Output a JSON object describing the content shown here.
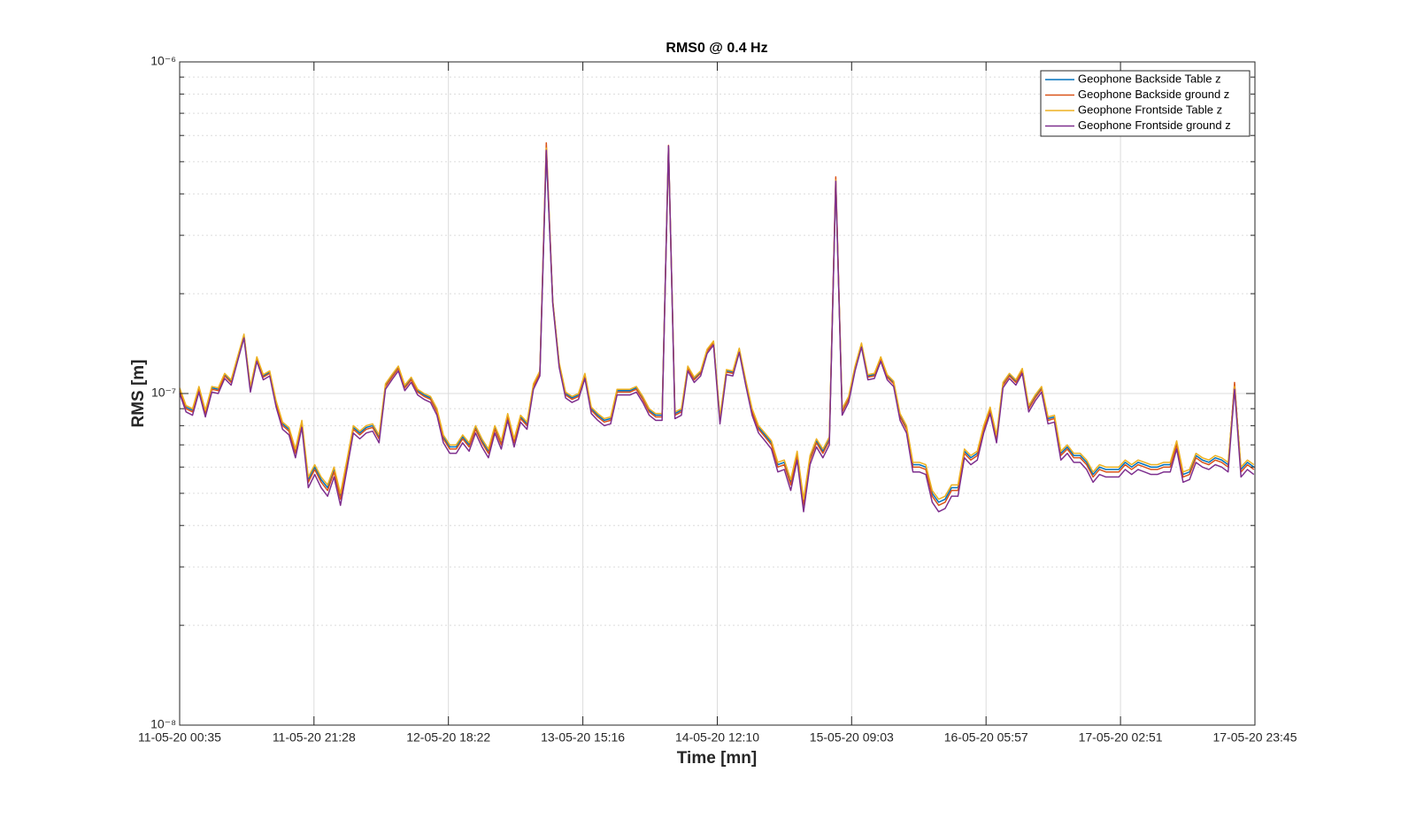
{
  "chart_data": {
    "type": "line",
    "title": "RMS0 @ 0.4 Hz",
    "xlabel": "Time [mn]",
    "ylabel": "RMS [m]",
    "yscale": "log",
    "grid": true,
    "legend": "upper right",
    "xlim": [
      "11-05-20 00:35",
      "17-05-20 23:45"
    ],
    "xticks": [
      "11-05-20 00:35",
      "11-05-20 21:28",
      "12-05-20 18:22",
      "13-05-20 15:16",
      "14-05-20 12:10",
      "15-05-20 09:03",
      "16-05-20 05:57",
      "17-05-20 02:51",
      "17-05-20 23:45"
    ],
    "ylim": [
      1e-08,
      1e-06
    ],
    "yticks": [
      {
        "value": 1e-08,
        "label": "10⁻⁸"
      },
      {
        "value": 1e-07,
        "label": "10⁻⁷"
      },
      {
        "value": 1e-06,
        "label": "10⁻⁶"
      }
    ],
    "yminorticks": [
      2e-08,
      3e-08,
      4e-08,
      5e-08,
      6e-08,
      7e-08,
      8e-08,
      9e-08,
      2e-07,
      3e-07,
      4e-07,
      5e-07,
      6e-07,
      7e-07,
      8e-07,
      9e-07
    ],
    "x": [
      "11-05-20 00:35",
      "11-05-20 01:35",
      "11-05-20 02:35",
      "11-05-20 03:35",
      "11-05-20 04:35",
      "11-05-20 05:35",
      "11-05-20 06:35",
      "11-05-20 07:35",
      "11-05-20 08:35",
      "11-05-20 09:35",
      "11-05-20 10:35",
      "11-05-20 11:35",
      "11-05-20 12:35",
      "11-05-20 13:35",
      "11-05-20 14:35",
      "11-05-20 15:35",
      "11-05-20 16:35",
      "11-05-20 17:35",
      "11-05-20 18:35",
      "11-05-20 19:35",
      "11-05-20 20:35",
      "11-05-20 21:35",
      "11-05-20 22:35",
      "11-05-20 23:35",
      "12-05-20 00:35",
      "12-05-20 01:35",
      "12-05-20 02:35",
      "12-05-20 03:35",
      "12-05-20 04:35",
      "12-05-20 05:35",
      "12-05-20 06:35",
      "12-05-20 07:35",
      "12-05-20 08:35",
      "12-05-20 09:35",
      "12-05-20 10:35",
      "12-05-20 11:35",
      "12-05-20 12:35",
      "12-05-20 13:35",
      "12-05-20 14:35",
      "12-05-20 15:35",
      "12-05-20 16:35",
      "12-05-20 17:35",
      "12-05-20 18:35",
      "12-05-20 19:35",
      "12-05-20 20:35",
      "12-05-20 21:35",
      "12-05-20 22:35",
      "12-05-20 23:35",
      "13-05-20 00:35",
      "13-05-20 01:35",
      "13-05-20 02:35",
      "13-05-20 03:35",
      "13-05-20 04:35",
      "13-05-20 05:35",
      "13-05-20 06:35",
      "13-05-20 07:35",
      "13-05-20 08:35",
      "13-05-20 09:35",
      "13-05-20 10:35",
      "13-05-20 11:35",
      "13-05-20 12:35",
      "13-05-20 13:35",
      "13-05-20 14:35",
      "13-05-20 15:35",
      "13-05-20 16:35",
      "13-05-20 17:35",
      "13-05-20 18:35",
      "13-05-20 19:35",
      "13-05-20 20:35",
      "13-05-20 21:35",
      "13-05-20 22:35",
      "13-05-20 23:35",
      "14-05-20 00:35",
      "14-05-20 01:35",
      "14-05-20 02:35",
      "14-05-20 03:35",
      "14-05-20 04:35",
      "14-05-20 05:35",
      "14-05-20 06:35",
      "14-05-20 07:35",
      "14-05-20 08:35",
      "14-05-20 09:35",
      "14-05-20 10:35",
      "14-05-20 11:35",
      "14-05-20 12:35",
      "14-05-20 13:35",
      "14-05-20 14:35",
      "14-05-20 15:35",
      "14-05-20 16:35",
      "14-05-20 17:35",
      "14-05-20 18:35",
      "14-05-20 19:35",
      "14-05-20 20:35",
      "14-05-20 21:35",
      "14-05-20 22:35",
      "14-05-20 23:35",
      "15-05-20 00:35",
      "15-05-20 01:35",
      "15-05-20 02:35",
      "15-05-20 03:35",
      "15-05-20 04:35",
      "15-05-20 05:35",
      "15-05-20 06:35",
      "15-05-20 07:35",
      "15-05-20 08:35",
      "15-05-20 09:35",
      "15-05-20 10:35",
      "15-05-20 11:35",
      "15-05-20 12:35",
      "15-05-20 13:35",
      "15-05-20 14:35",
      "15-05-20 15:35",
      "15-05-20 16:35",
      "15-05-20 17:35",
      "15-05-20 18:35",
      "15-05-20 19:35",
      "15-05-20 20:35",
      "15-05-20 21:35",
      "15-05-20 22:35",
      "15-05-20 23:35",
      "16-05-20 00:35",
      "16-05-20 01:35",
      "16-05-20 02:35",
      "16-05-20 03:35",
      "16-05-20 04:35",
      "16-05-20 05:35",
      "16-05-20 06:35",
      "16-05-20 07:35",
      "16-05-20 08:35",
      "16-05-20 09:35",
      "16-05-20 10:35",
      "16-05-20 11:35",
      "16-05-20 12:35",
      "16-05-20 13:35",
      "16-05-20 14:35",
      "16-05-20 15:35",
      "16-05-20 16:35",
      "16-05-20 17:35",
      "16-05-20 18:35",
      "16-05-20 19:35",
      "16-05-20 20:35",
      "16-05-20 21:35",
      "16-05-20 22:35",
      "16-05-20 23:35",
      "17-05-20 00:35",
      "17-05-20 01:35",
      "17-05-20 02:35",
      "17-05-20 03:35",
      "17-05-20 04:35",
      "17-05-20 05:35",
      "17-05-20 06:35",
      "17-05-20 07:35",
      "17-05-20 08:35",
      "17-05-20 09:35",
      "17-05-20 10:35",
      "17-05-20 11:35",
      "17-05-20 12:35",
      "17-05-20 13:35",
      "17-05-20 14:35",
      "17-05-20 15:35",
      "17-05-20 16:35",
      "17-05-20 17:35",
      "17-05-20 18:35",
      "17-05-20 19:35",
      "17-05-20 20:35",
      "17-05-20 21:35",
      "17-05-20 22:35",
      "17-05-20 23:35"
    ],
    "series": [
      {
        "name": "Geophone Backside Table z",
        "color": "#0072bd",
        "values": [
          1.03e-07,
          9.1e-08,
          8.9e-08,
          1.04e-07,
          8.8e-08,
          1.04e-07,
          1.03e-07,
          1.14e-07,
          1.09e-07,
          1.28e-07,
          1.5e-07,
          1.04e-07,
          1.28e-07,
          1.13e-07,
          1.16e-07,
          9.4e-08,
          8.1e-08,
          7.8e-08,
          6.7e-08,
          8.2e-08,
          5.5e-08,
          6e-08,
          5.5e-08,
          5.2e-08,
          5.9e-08,
          4.9e-08,
          6.2e-08,
          7.9e-08,
          7.6e-08,
          7.9e-08,
          8e-08,
          7.4e-08,
          1.06e-07,
          1.13e-07,
          1.2e-07,
          1.05e-07,
          1.11e-07,
          1.02e-07,
          9.9e-08,
          9.7e-08,
          8.9e-08,
          7.4e-08,
          6.9e-08,
          6.9e-08,
          7.4e-08,
          7e-08,
          7.9e-08,
          7.2e-08,
          6.7e-08,
          7.9e-08,
          7.1e-08,
          8.6e-08,
          7.2e-08,
          8.5e-08,
          8.1e-08,
          1.06e-07,
          1.16e-07,
          5.3e-07,
          1.9e-07,
          1.23e-07,
          1e-07,
          9.7e-08,
          9.9e-08,
          1.14e-07,
          9e-08,
          8.6e-08,
          8.3e-08,
          8.4e-08,
          1.02e-07,
          1.02e-07,
          1.02e-07,
          1.04e-07,
          9.7e-08,
          8.9e-08,
          8.6e-08,
          8.6e-08,
          5.5e-07,
          8.7e-08,
          8.9e-08,
          1.2e-07,
          1.11e-07,
          1.16e-07,
          1.35e-07,
          1.43e-07,
          8.4e-08,
          1.17e-07,
          1.16e-07,
          1.36e-07,
          1.09e-07,
          8.9e-08,
          7.9e-08,
          7.5e-08,
          7.1e-08,
          6.1e-08,
          6.2e-08,
          5.4e-08,
          6.6e-08,
          4.7e-08,
          6.4e-08,
          7.2e-08,
          6.7e-08,
          7.3e-08,
          4.3e-07,
          8.9e-08,
          9.7e-08,
          1.2e-07,
          1.41e-07,
          1.13e-07,
          1.14e-07,
          1.28e-07,
          1.13e-07,
          1.08e-07,
          8.6e-08,
          7.9e-08,
          6.1e-08,
          6.1e-08,
          6e-08,
          5e-08,
          4.7e-08,
          4.8e-08,
          5.2e-08,
          5.2e-08,
          6.7e-08,
          6.4e-08,
          6.6e-08,
          7.9e-08,
          9e-08,
          7.4e-08,
          1.07e-07,
          1.14e-07,
          1.09e-07,
          1.18e-07,
          9.1e-08,
          9.8e-08,
          1.04e-07,
          8.4e-08,
          8.5e-08,
          6.6e-08,
          6.9e-08,
          6.5e-08,
          6.5e-08,
          6.2e-08,
          5.7e-08,
          6e-08,
          5.9e-08,
          5.9e-08,
          5.9e-08,
          6.2e-08,
          6e-08,
          6.2e-08,
          6.1e-08,
          6e-08,
          6e-08,
          6.1e-08,
          6.1e-08,
          7.1e-08,
          5.7e-08,
          5.8e-08,
          6.5e-08,
          6.3e-08,
          6.2e-08,
          6.4e-08,
          6.3e-08,
          6.1e-08,
          1.06e-07,
          5.9e-08,
          6.2e-08,
          6e-08
        ]
      },
      {
        "name": "Geophone Backside ground z",
        "color": "#d95319",
        "values": [
          1.02e-07,
          9e-08,
          8.8e-08,
          1.03e-07,
          8.7e-08,
          1.03e-07,
          1.02e-07,
          1.13e-07,
          1.08e-07,
          1.27e-07,
          1.49e-07,
          1.03e-07,
          1.27e-07,
          1.12e-07,
          1.15e-07,
          9.3e-08,
          8e-08,
          7.7e-08,
          6.6e-08,
          8.1e-08,
          5.4e-08,
          5.9e-08,
          5.4e-08,
          5.1e-08,
          5.8e-08,
          4.8e-08,
          6.1e-08,
          7.8e-08,
          7.5e-08,
          7.8e-08,
          7.9e-08,
          7.3e-08,
          1.05e-07,
          1.12e-07,
          1.19e-07,
          1.04e-07,
          1.1e-07,
          1.01e-07,
          9.8e-08,
          9.6e-08,
          8.8e-08,
          7.3e-08,
          6.8e-08,
          6.8e-08,
          7.3e-08,
          6.9e-08,
          7.8e-08,
          7.1e-08,
          6.6e-08,
          7.8e-08,
          7e-08,
          8.5e-08,
          7.1e-08,
          8.4e-08,
          8e-08,
          1.05e-07,
          1.15e-07,
          5.7e-07,
          1.89e-07,
          1.22e-07,
          9.9e-08,
          9.6e-08,
          9.8e-08,
          1.13e-07,
          8.9e-08,
          8.5e-08,
          8.2e-08,
          8.3e-08,
          1.01e-07,
          1.01e-07,
          1.01e-07,
          1.03e-07,
          9.6e-08,
          8.8e-08,
          8.5e-08,
          8.5e-08,
          5.6e-07,
          8.6e-08,
          8.8e-08,
          1.19e-07,
          1.1e-07,
          1.15e-07,
          1.34e-07,
          1.42e-07,
          8.3e-08,
          1.16e-07,
          1.15e-07,
          1.35e-07,
          1.08e-07,
          8.8e-08,
          7.8e-08,
          7.4e-08,
          7e-08,
          6e-08,
          6.1e-08,
          5.3e-08,
          6.5e-08,
          4.6e-08,
          6.3e-08,
          7.1e-08,
          6.6e-08,
          7.2e-08,
          4.5e-07,
          8.8e-08,
          9.6e-08,
          1.19e-07,
          1.4e-07,
          1.12e-07,
          1.13e-07,
          1.27e-07,
          1.12e-07,
          1.07e-07,
          8.5e-08,
          7.8e-08,
          6e-08,
          6e-08,
          5.9e-08,
          4.9e-08,
          4.6e-08,
          4.7e-08,
          5.1e-08,
          5.1e-08,
          6.6e-08,
          6.3e-08,
          6.5e-08,
          7.8e-08,
          8.9e-08,
          7.3e-08,
          1.06e-07,
          1.13e-07,
          1.08e-07,
          1.17e-07,
          9e-08,
          9.7e-08,
          1.03e-07,
          8.3e-08,
          8.4e-08,
          6.5e-08,
          6.8e-08,
          6.4e-08,
          6.4e-08,
          6.1e-08,
          5.6e-08,
          5.9e-08,
          5.8e-08,
          5.8e-08,
          5.8e-08,
          6.1e-08,
          5.9e-08,
          6.1e-08,
          6e-08,
          5.9e-08,
          5.9e-08,
          6e-08,
          6e-08,
          7e-08,
          5.6e-08,
          5.7e-08,
          6.4e-08,
          6.2e-08,
          6.1e-08,
          6.3e-08,
          6.2e-08,
          6e-08,
          1.08e-07,
          5.8e-08,
          6.1e-08,
          5.9e-08
        ]
      },
      {
        "name": "Geophone Frontside Table z",
        "color": "#edb120",
        "values": [
          1.04e-07,
          9.2e-08,
          9e-08,
          1.05e-07,
          8.9e-08,
          1.05e-07,
          1.04e-07,
          1.15e-07,
          1.1e-07,
          1.29e-07,
          1.51e-07,
          1.05e-07,
          1.29e-07,
          1.14e-07,
          1.17e-07,
          9.5e-08,
          8.2e-08,
          7.9e-08,
          6.8e-08,
          8.3e-08,
          5.6e-08,
          6.1e-08,
          5.6e-08,
          5.3e-08,
          6e-08,
          5e-08,
          6.3e-08,
          8e-08,
          7.7e-08,
          8e-08,
          8.1e-08,
          7.5e-08,
          1.07e-07,
          1.14e-07,
          1.21e-07,
          1.06e-07,
          1.12e-07,
          1.03e-07,
          1e-07,
          9.8e-08,
          9e-08,
          7.5e-08,
          7e-08,
          7e-08,
          7.5e-08,
          7.1e-08,
          8e-08,
          7.3e-08,
          6.8e-08,
          8e-08,
          7.2e-08,
          8.7e-08,
          7.3e-08,
          8.6e-08,
          8.2e-08,
          1.07e-07,
          1.17e-07,
          5.5e-07,
          1.91e-07,
          1.24e-07,
          1.01e-07,
          9.8e-08,
          1e-07,
          1.15e-07,
          9.1e-08,
          8.7e-08,
          8.4e-08,
          8.5e-08,
          1.03e-07,
          1.03e-07,
          1.03e-07,
          1.05e-07,
          9.8e-08,
          9e-08,
          8.7e-08,
          8.7e-08,
          5.45e-07,
          8.8e-08,
          9e-08,
          1.21e-07,
          1.12e-07,
          1.17e-07,
          1.36e-07,
          1.44e-07,
          8.5e-08,
          1.18e-07,
          1.17e-07,
          1.37e-07,
          1.1e-07,
          9e-08,
          8e-08,
          7.6e-08,
          7.2e-08,
          6.2e-08,
          6.3e-08,
          5.5e-08,
          6.7e-08,
          4.8e-08,
          6.5e-08,
          7.3e-08,
          6.8e-08,
          7.4e-08,
          4.4e-07,
          9e-08,
          9.8e-08,
          1.21e-07,
          1.42e-07,
          1.14e-07,
          1.15e-07,
          1.29e-07,
          1.14e-07,
          1.09e-07,
          8.7e-08,
          8e-08,
          6.2e-08,
          6.2e-08,
          6.1e-08,
          5.1e-08,
          4.8e-08,
          4.9e-08,
          5.3e-08,
          5.3e-08,
          6.8e-08,
          6.5e-08,
          6.7e-08,
          8e-08,
          9.1e-08,
          7.5e-08,
          1.08e-07,
          1.15e-07,
          1.1e-07,
          1.19e-07,
          9.2e-08,
          9.9e-08,
          1.05e-07,
          8.5e-08,
          8.6e-08,
          6.7e-08,
          7e-08,
          6.6e-08,
          6.6e-08,
          6.3e-08,
          5.8e-08,
          6.1e-08,
          6e-08,
          6e-08,
          6e-08,
          6.3e-08,
          6.1e-08,
          6.3e-08,
          6.2e-08,
          6.1e-08,
          6.1e-08,
          6.2e-08,
          6.2e-08,
          7.2e-08,
          5.8e-08,
          5.9e-08,
          6.6e-08,
          6.4e-08,
          6.3e-08,
          6.5e-08,
          6.4e-08,
          6.2e-08,
          1.05e-07,
          6e-08,
          6.3e-08,
          6.1e-08
        ]
      },
      {
        "name": "Geophone Frontside ground z",
        "color": "#7e2f8e",
        "values": [
          1e-07,
          8.8e-08,
          8.6e-08,
          1.01e-07,
          8.5e-08,
          1.01e-07,
          1e-07,
          1.11e-07,
          1.06e-07,
          1.25e-07,
          1.47e-07,
          1.01e-07,
          1.25e-07,
          1.1e-07,
          1.13e-07,
          9.1e-08,
          7.8e-08,
          7.5e-08,
          6.4e-08,
          7.9e-08,
          5.2e-08,
          5.7e-08,
          5.2e-08,
          4.9e-08,
          5.6e-08,
          4.6e-08,
          5.9e-08,
          7.6e-08,
          7.3e-08,
          7.6e-08,
          7.7e-08,
          7.1e-08,
          1.03e-07,
          1.1e-07,
          1.17e-07,
          1.02e-07,
          1.08e-07,
          9.9e-08,
          9.6e-08,
          9.4e-08,
          8.6e-08,
          7.1e-08,
          6.6e-08,
          6.6e-08,
          7.1e-08,
          6.7e-08,
          7.6e-08,
          6.9e-08,
          6.4e-08,
          7.6e-08,
          6.8e-08,
          8.3e-08,
          6.9e-08,
          8.2e-08,
          7.8e-08,
          1.03e-07,
          1.13e-07,
          5.41e-07,
          1.87e-07,
          1.2e-07,
          9.7e-08,
          9.4e-08,
          9.6e-08,
          1.11e-07,
          8.7e-08,
          8.3e-08,
          8e-08,
          8.1e-08,
          9.9e-08,
          9.9e-08,
          9.9e-08,
          1.01e-07,
          9.4e-08,
          8.6e-08,
          8.3e-08,
          8.3e-08,
          5.58e-07,
          8.4e-08,
          8.6e-08,
          1.17e-07,
          1.08e-07,
          1.13e-07,
          1.32e-07,
          1.4e-07,
          8.1e-08,
          1.14e-07,
          1.13e-07,
          1.33e-07,
          1.06e-07,
          8.6e-08,
          7.6e-08,
          7.2e-08,
          6.8e-08,
          5.8e-08,
          5.9e-08,
          5.1e-08,
          6.3e-08,
          4.4e-08,
          6.1e-08,
          6.9e-08,
          6.4e-08,
          7e-08,
          4.37e-07,
          8.6e-08,
          9.4e-08,
          1.17e-07,
          1.38e-07,
          1.1e-07,
          1.11e-07,
          1.25e-07,
          1.1e-07,
          1.05e-07,
          8.3e-08,
          7.6e-08,
          5.8e-08,
          5.8e-08,
          5.7e-08,
          4.7e-08,
          4.4e-08,
          4.5e-08,
          4.9e-08,
          4.9e-08,
          6.4e-08,
          6.1e-08,
          6.3e-08,
          7.6e-08,
          8.7e-08,
          7.1e-08,
          1.04e-07,
          1.11e-07,
          1.06e-07,
          1.15e-07,
          8.8e-08,
          9.5e-08,
          1.01e-07,
          8.1e-08,
          8.2e-08,
          6.3e-08,
          6.6e-08,
          6.2e-08,
          6.2e-08,
          5.9e-08,
          5.4e-08,
          5.7e-08,
          5.6e-08,
          5.6e-08,
          5.6e-08,
          5.9e-08,
          5.7e-08,
          5.9e-08,
          5.8e-08,
          5.7e-08,
          5.7e-08,
          5.8e-08,
          5.8e-08,
          6.8e-08,
          5.4e-08,
          5.5e-08,
          6.2e-08,
          6e-08,
          5.9e-08,
          6.1e-08,
          6e-08,
          5.8e-08,
          1.03e-07,
          5.6e-08,
          5.9e-08,
          5.7e-08
        ]
      }
    ]
  }
}
